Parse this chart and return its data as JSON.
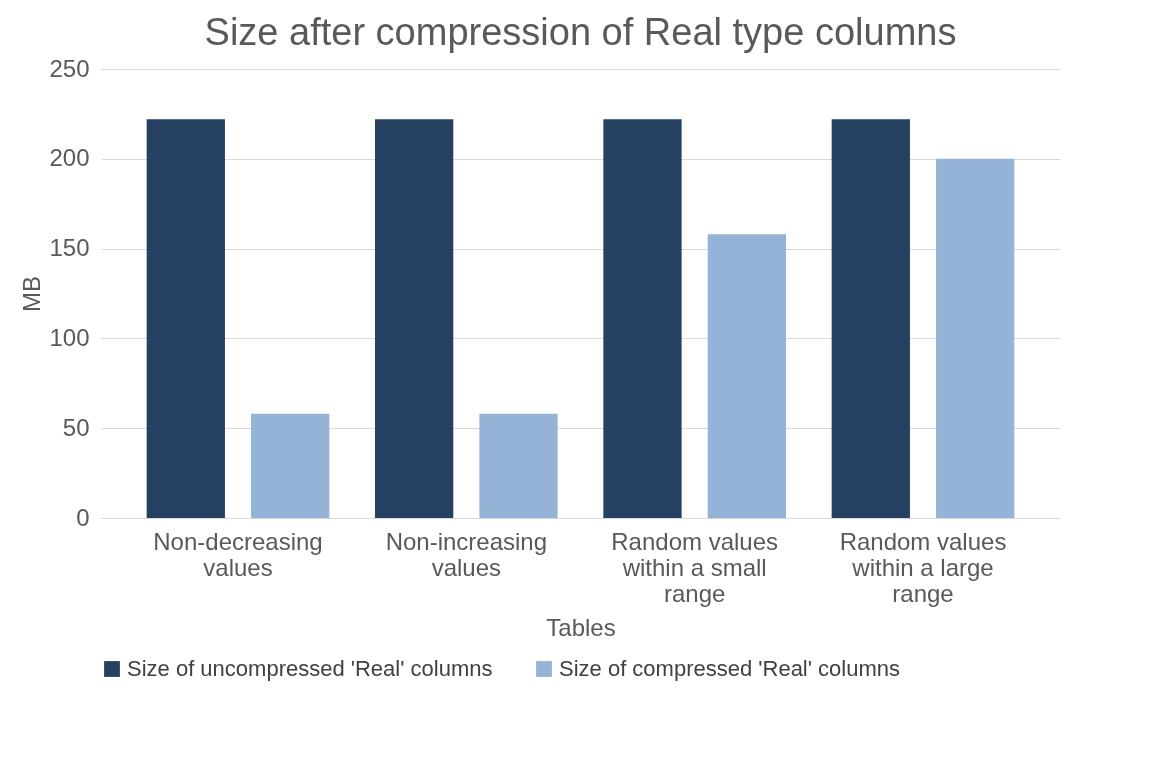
{
  "chart_data": {
    "type": "bar",
    "title": "Size after compression of Real type columns",
    "xlabel": "Tables",
    "ylabel": "MB",
    "categories": [
      "Non-decreasing values",
      "Non-increasing values",
      "Random values within a small range",
      "Random values within a large range"
    ],
    "series": [
      {
        "name": "Size of uncompressed 'Real' columns",
        "color": "#264061",
        "values": [
          222,
          222,
          222,
          222
        ]
      },
      {
        "name": "Size of compressed 'Real' columns",
        "color": "#95b3d7",
        "values": [
          58,
          58,
          158,
          200
        ]
      }
    ],
    "ylim": [
      0,
      250
    ],
    "yticks": [
      0,
      50,
      100,
      150,
      200,
      250
    ],
    "grid": "y",
    "legend": "bottom"
  }
}
